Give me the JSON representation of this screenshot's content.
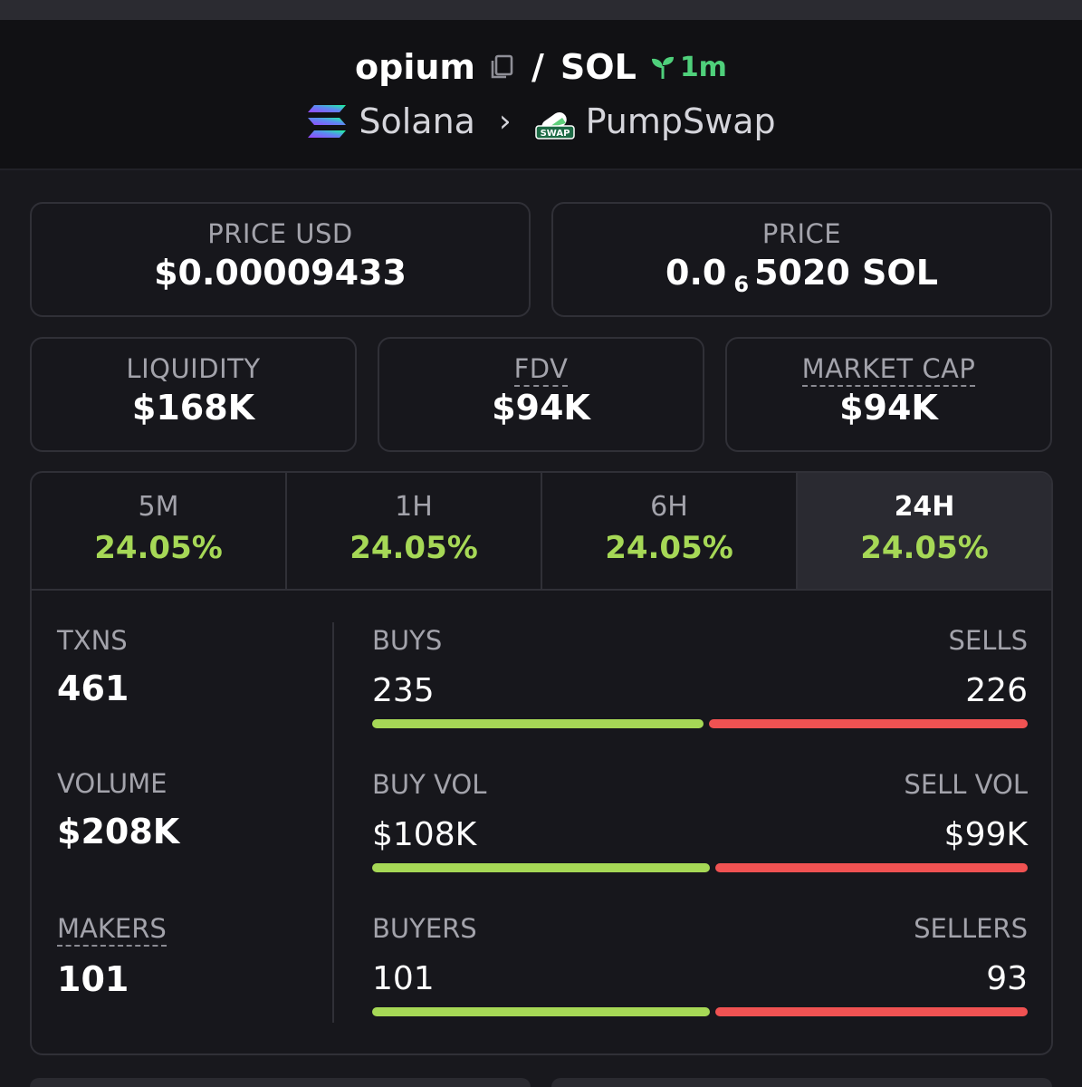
{
  "header": {
    "token": "opium",
    "separator": "/",
    "quote": "SOL",
    "age": "1m",
    "chain": "Solana",
    "dex": "PumpSwap",
    "dex_logo_text": "SWAP"
  },
  "prices": {
    "usd_label": "PRICE USD",
    "usd_value": "$0.00009433",
    "native_label": "PRICE",
    "native_prefix": "0.0",
    "native_zeros": "6",
    "native_suffix": "5020 SOL"
  },
  "metrics": {
    "liquidity_label": "LIQUIDITY",
    "liquidity_value": "$168K",
    "fdv_label": "FDV",
    "fdv_value": "$94K",
    "mcap_label": "MARKET CAP",
    "mcap_value": "$94K"
  },
  "tabs": [
    {
      "label": "5M",
      "value": "24.05%"
    },
    {
      "label": "1H",
      "value": "24.05%"
    },
    {
      "label": "6H",
      "value": "24.05%"
    },
    {
      "label": "24H",
      "value": "24.05%"
    }
  ],
  "active_tab": "24H",
  "stats": {
    "txns_label": "TXNS",
    "txns_value": "461",
    "volume_label": "VOLUME",
    "volume_value": "$208K",
    "makers_label": "MAKERS",
    "makers_value": "101",
    "buys_label": "BUYS",
    "buys_value": "235",
    "sells_label": "SELLS",
    "sells_value": "226",
    "buy_vol_label": "BUY VOL",
    "buy_vol_value": "$108K",
    "sell_vol_label": "SELL VOL",
    "sell_vol_value": "$99K",
    "buyers_label": "BUYERS",
    "buyers_value": "101",
    "sellers_label": "SELLERS",
    "sellers_value": "93",
    "buys_ratio": 0.51,
    "buy_vol_ratio": 0.52,
    "buyers_ratio": 0.52
  },
  "colors": {
    "positive": "#a6d856",
    "negative": "#f05252",
    "age": "#4fd07b"
  }
}
